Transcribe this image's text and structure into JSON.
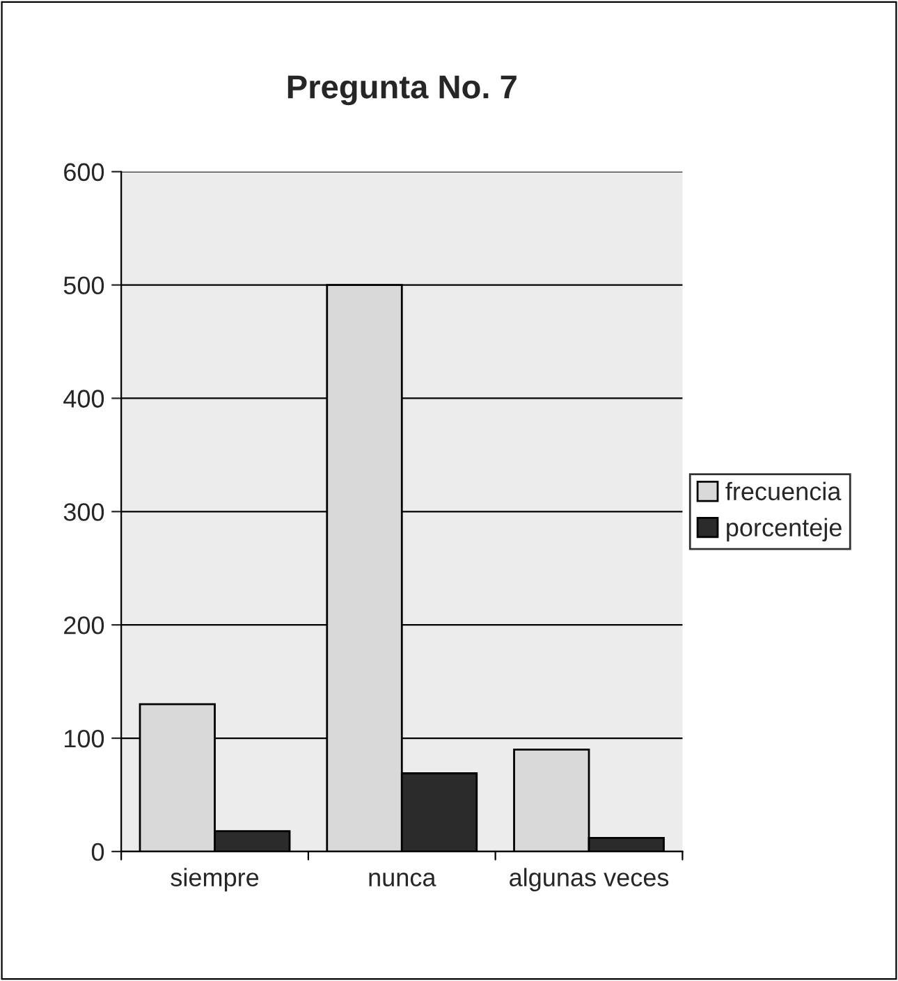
{
  "chart_data": {
    "type": "bar",
    "title": "Pregunta No. 7",
    "categories": [
      "siempre",
      "nunca",
      "algunas veces"
    ],
    "series": [
      {
        "name": "frecuencia",
        "color": "#d9d9d9",
        "values": [
          130,
          500,
          90
        ]
      },
      {
        "name": "porcenteje",
        "color": "#2b2b2b",
        "values": [
          18,
          69,
          12
        ]
      }
    ],
    "ylim": [
      0,
      600
    ],
    "yticks": [
      0,
      100,
      200,
      300,
      400,
      500,
      600
    ],
    "grid": "y",
    "legend": "right"
  }
}
